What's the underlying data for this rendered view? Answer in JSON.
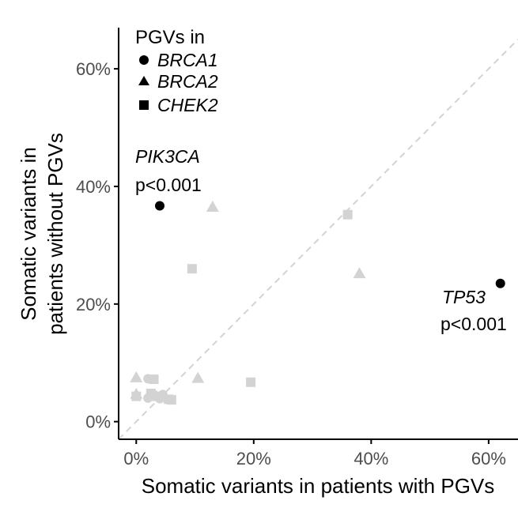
{
  "colors": {
    "highlight": "#000000",
    "other": "#d3d3d3",
    "diagonal": "#d3d3d3",
    "axis": "#000000"
  },
  "chart_data": {
    "type": "scatter",
    "xlabel": "Somatic variants in patients with PGVs",
    "ylabel_lines": [
      "Somatic variants in",
      "patients without PGVs"
    ],
    "xlim": [
      -3,
      65
    ],
    "ylim": [
      -3,
      67
    ],
    "x_ticks": [
      0,
      20,
      40,
      60
    ],
    "y_ticks": [
      0,
      20,
      40,
      60
    ],
    "x_tick_labels": [
      "0%",
      "20%",
      "40%",
      "60%"
    ],
    "y_tick_labels": [
      "0%",
      "20%",
      "40%",
      "60%"
    ],
    "reference_line": "y = x (dashed)",
    "grid": false,
    "legend": {
      "title": "PGVs in",
      "placement": "top-left",
      "entries": [
        {
          "shape": "circle",
          "label": "BRCA1"
        },
        {
          "shape": "triangle",
          "label": "BRCA2"
        },
        {
          "shape": "square",
          "label": "CHEK2"
        }
      ]
    },
    "annotations": [
      {
        "gene": "PIK3CA",
        "p": "p<0.001"
      },
      {
        "gene": "TP53",
        "p": "p<0.001"
      }
    ],
    "points": [
      {
        "x": 4.0,
        "y": 36.7,
        "shape": "circle",
        "highlight": true
      },
      {
        "x": 62.0,
        "y": 23.5,
        "shape": "circle",
        "highlight": true
      },
      {
        "x": 13.0,
        "y": 36.5,
        "shape": "triangle",
        "highlight": false
      },
      {
        "x": 38.0,
        "y": 25.2,
        "shape": "triangle",
        "highlight": false
      },
      {
        "x": 10.5,
        "y": 7.4,
        "shape": "triangle",
        "highlight": false
      },
      {
        "x": 0.0,
        "y": 7.5,
        "shape": "triangle",
        "highlight": false
      },
      {
        "x": 0.0,
        "y": 4.7,
        "shape": "triangle",
        "highlight": false
      },
      {
        "x": 36.0,
        "y": 35.2,
        "shape": "square",
        "highlight": false
      },
      {
        "x": 9.5,
        "y": 26.0,
        "shape": "square",
        "highlight": false
      },
      {
        "x": 19.5,
        "y": 6.7,
        "shape": "square",
        "highlight": false
      },
      {
        "x": 3.0,
        "y": 7.2,
        "shape": "square",
        "highlight": false
      },
      {
        "x": 0.0,
        "y": 4.3,
        "shape": "square",
        "highlight": false
      },
      {
        "x": 2.5,
        "y": 4.8,
        "shape": "square",
        "highlight": false
      },
      {
        "x": 3.5,
        "y": 4.3,
        "shape": "square",
        "highlight": false
      },
      {
        "x": 4.5,
        "y": 4.1,
        "shape": "square",
        "highlight": false
      },
      {
        "x": 5.5,
        "y": 3.8,
        "shape": "square",
        "highlight": false
      },
      {
        "x": 6.0,
        "y": 3.7,
        "shape": "square",
        "highlight": false
      },
      {
        "x": 2.0,
        "y": 7.3,
        "shape": "circle",
        "highlight": false
      },
      {
        "x": 2.0,
        "y": 4.0,
        "shape": "circle",
        "highlight": false
      },
      {
        "x": 3.0,
        "y": 4.6,
        "shape": "circle",
        "highlight": false
      },
      {
        "x": 4.0,
        "y": 3.9,
        "shape": "circle",
        "highlight": false
      },
      {
        "x": 4.5,
        "y": 4.6,
        "shape": "circle",
        "highlight": false
      }
    ]
  }
}
